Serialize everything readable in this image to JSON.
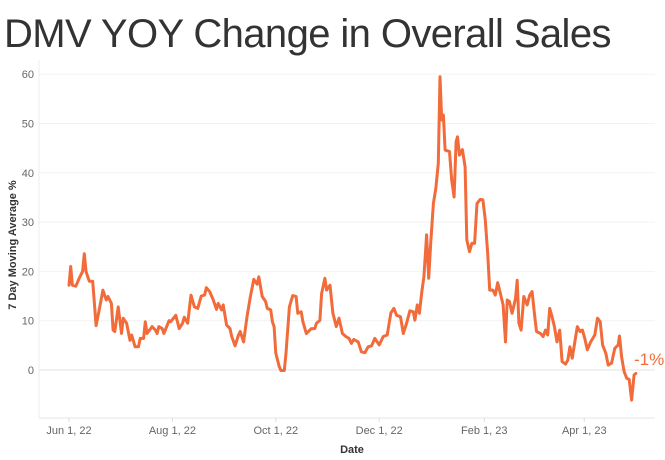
{
  "chart_data": {
    "type": "line",
    "title": "DMV YOY Change in Overall Sales",
    "xlabel": "Date",
    "ylabel": "7 Day Moving Average %",
    "x_unit": "days since Jun 1, 22",
    "xlim": [
      -11,
      352
    ],
    "ylim": [
      -10,
      62
    ],
    "grid": true,
    "line_color": "#F26B3A",
    "x_ticks": [
      {
        "label": "Jun 1, 22",
        "day": 0
      },
      {
        "label": "Aug 1, 22",
        "day": 61
      },
      {
        "label": "Oct 1, 22",
        "day": 122
      },
      {
        "label": "Dec 1, 22",
        "day": 183
      },
      {
        "label": "Feb 1, 23",
        "day": 245
      },
      {
        "label": "Apr 1, 23",
        "day": 304
      }
    ],
    "y_ticks": [
      0,
      10,
      20,
      30,
      40,
      50,
      60
    ],
    "end_label": "-1%",
    "series": [
      {
        "name": "7 Day Moving Average %",
        "x": [
          0,
          1,
          2,
          4,
          6,
          8,
          9,
          10,
          12,
          14,
          16,
          18,
          20,
          22,
          23,
          25,
          26,
          27,
          29,
          31,
          32,
          34,
          36,
          37,
          39,
          41,
          42,
          44,
          45,
          46,
          49,
          51,
          52,
          53,
          55,
          56,
          58,
          59,
          60,
          63,
          65,
          67,
          68,
          70,
          72,
          74,
          76,
          78,
          80,
          81,
          83,
          85,
          87,
          88,
          90,
          91,
          93,
          95,
          96,
          98,
          100,
          101,
          103,
          105,
          107,
          109,
          111,
          112,
          114,
          116,
          117,
          119,
          120,
          121,
          122,
          124,
          125,
          127,
          128,
          130,
          132,
          134,
          135,
          137,
          138,
          140,
          143,
          145,
          146,
          148,
          149,
          151,
          152,
          154,
          155.7,
          157.7,
          159.3,
          161.3,
          163.3,
          165.2,
          166.6,
          168,
          170.6,
          172.5,
          174.5,
          176.5,
          178.5,
          180.4,
          183,
          185.4,
          187.7,
          189.9,
          191.7,
          193.3,
          195.6,
          197.2,
          199.2,
          201.1,
          203.1,
          204.1,
          205.5,
          206.7,
          208,
          209.4,
          211,
          212.2,
          213.4,
          215,
          216.4,
          217.9,
          218.9,
          219.9,
          220.9,
          221.9,
          224.5,
          225.8,
          227.2,
          228.4,
          229.2,
          230.4,
          232.1,
          233.7,
          234.7,
          236.3,
          237.7,
          239.3,
          240.7,
          242.6,
          244.2,
          245.6,
          247,
          248.2,
          250.1,
          251.5,
          252.9,
          254.5,
          256.1,
          257.5,
          258.5,
          259.8,
          261.4,
          263.4,
          264.4,
          265.4,
          266.7,
          268.3,
          270.3,
          271.8,
          273.2,
          274.6,
          275.8,
          278.2,
          279.7,
          281.1,
          282.4,
          283.6,
          285,
          286.4,
          287.9,
          289.5,
          290.9,
          292.9,
          294.3,
          295.5,
          296.9,
          298.3,
          299.9,
          301.5,
          302.9,
          304.3,
          305.8,
          307.8,
          310.2,
          311.8,
          313.4,
          314.8,
          316.7,
          318.1,
          320.1,
          322,
          324,
          324.8,
          326,
          327.5,
          329.1,
          330.5,
          331.9,
          333.4,
          334.4
        ],
        "y": [
          17.2,
          21,
          17.2,
          17,
          18.6,
          20,
          23.6,
          20,
          18,
          18,
          9,
          12.5,
          16.2,
          14.2,
          14.9,
          13.5,
          8.1,
          7.8,
          12.8,
          7.4,
          10.5,
          9.5,
          6,
          7.1,
          4.7,
          4.7,
          6.4,
          6.4,
          9.8,
          7.4,
          8.8,
          8.1,
          7.4,
          8.8,
          8.4,
          7.4,
          9.1,
          10,
          9.8,
          11.1,
          8.4,
          9.5,
          10.7,
          9.5,
          15.2,
          12.8,
          12.5,
          15,
          15.2,
          16.7,
          15.9,
          14.3,
          12.3,
          13.5,
          12.2,
          13.2,
          9.1,
          8.4,
          6.8,
          4.9,
          7.1,
          7.8,
          5.7,
          10.8,
          14.9,
          18.4,
          17.4,
          18.9,
          14.9,
          13.9,
          12.5,
          12.2,
          9.8,
          8.8,
          3.4,
          0.7,
          -0.1,
          -0.1,
          3.4,
          12.8,
          15.1,
          14.9,
          11.5,
          11.8,
          9.8,
          7.4,
          8.4,
          8.4,
          9.5,
          10.1,
          15.5,
          18.6,
          16.2,
          17.2,
          11.5,
          8.8,
          10.5,
          7.4,
          6.8,
          6.4,
          5.4,
          6.2,
          5.7,
          3.7,
          3.5,
          4.7,
          4.9,
          6.4,
          5.1,
          6.8,
          7.1,
          11.6,
          12.5,
          11.1,
          10.8,
          7.4,
          9.5,
          12,
          11.8,
          10.1,
          13.2,
          11.5,
          15.5,
          18.9,
          27.4,
          18.6,
          25.7,
          33.8,
          36.8,
          41.9,
          59.5,
          50.7,
          51.7,
          44.6,
          44.3,
          38.5,
          35.1,
          46.3,
          47.3,
          43.6,
          44.7,
          41.2,
          26.4,
          24,
          25.7,
          25.7,
          33.8,
          34.6,
          34.5,
          30.4,
          23.6,
          16.2,
          16.2,
          15.2,
          17.7,
          15.5,
          13.2,
          5.7,
          14.2,
          13.9,
          11.5,
          14.5,
          18.2,
          9.5,
          8.1,
          14.9,
          13.2,
          15.2,
          15.9,
          11.5,
          7.8,
          7.4,
          6.8,
          8.1,
          7.1,
          12.5,
          10.8,
          8.8,
          5.7,
          8.1,
          1.7,
          1.2,
          2,
          4.7,
          2.4,
          5.4,
          8.8,
          7.8,
          8.1,
          6.4,
          4.1,
          5.7,
          7.1,
          10.5,
          9.8,
          5.1,
          3.4,
          1,
          1.4,
          4.4,
          5.1,
          6.9,
          2.7,
          -0.3,
          -1.7,
          -1.9,
          -6.1,
          -1,
          -0.7
        ]
      }
    ]
  }
}
